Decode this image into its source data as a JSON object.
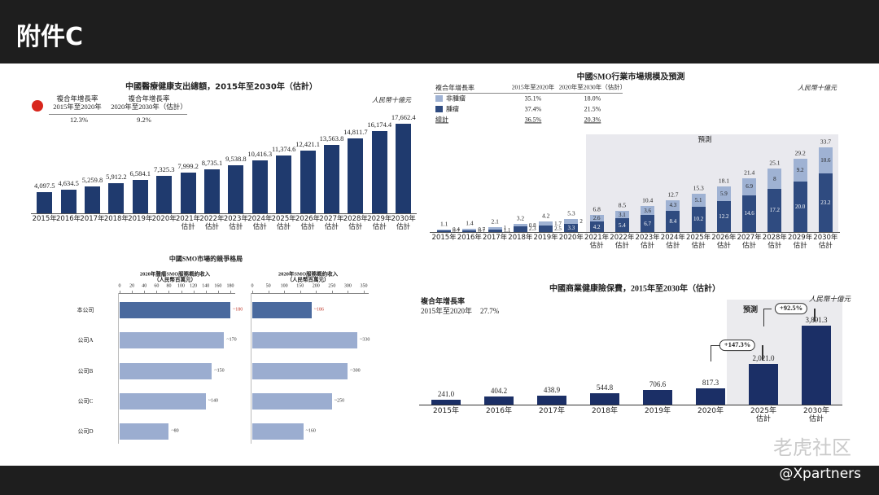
{
  "header": {
    "title": "附件C"
  },
  "footer": {
    "handle": "@Xpartners",
    "watermark": "老虎社区"
  },
  "chart_data": [
    {
      "type": "bar",
      "title": "中國醫療健康支出總額，2015年至2030年（估計）",
      "unit": "人民幣十億元",
      "cagr": {
        "label": "複合年增長率",
        "periods": [
          "2015年至2020年",
          "2020年至2030年（估計）"
        ],
        "values": [
          12.3,
          9.2
        ],
        "value_labels": [
          "12.3%",
          "9.2%"
        ]
      },
      "categories": [
        "2015年",
        "2016年",
        "2017年",
        "2018年",
        "2019年",
        "2020年",
        "2021年\n估計",
        "2022年\n估計",
        "2023年\n估計",
        "2024年\n估計",
        "2025年\n估計",
        "2026年\n估計",
        "2027年\n估計",
        "2028年\n估計",
        "2029年\n估計",
        "2030年\n估計"
      ],
      "values": [
        4097.5,
        4634.5,
        5259.8,
        5912.2,
        6584.1,
        7325.3,
        7999.2,
        8735.1,
        9538.8,
        10416.3,
        11374.6,
        12421.1,
        13563.8,
        14811.7,
        16174.4,
        17662.4
      ],
      "value_labels": [
        "4,097.5",
        "4,634.5",
        "5,259.8",
        "5,912.2",
        "6,584.1",
        "7,325.3",
        "7,999.2",
        "8,735.1",
        "9,538.8",
        "10,416.3",
        "11,374.6",
        "12,421.1",
        "13,563.8",
        "14,811.7",
        "16,174.4",
        "17,662.4"
      ],
      "color": "#1f3a6e"
    },
    {
      "type": "stacked_bar",
      "title": "中國SMO行業市場規模及預測",
      "unit": "人民幣十億元",
      "forecast_label": "預測",
      "cagr": {
        "label": "複合年增長率",
        "periods": [
          "2015年至2020年",
          "2020年至2030年（估計）"
        ],
        "rows": [
          {
            "name": "非腫瘤",
            "values": [
              35.1,
              18.0
            ],
            "value_labels": [
              "35.1%",
              "18.0%"
            ]
          },
          {
            "name": "腫瘤",
            "values": [
              37.4,
              21.5
            ],
            "value_labels": [
              "37.4%",
              "21.5%"
            ]
          },
          {
            "name": "總計",
            "values": [
              36.5,
              20.3
            ],
            "value_labels": [
              "36.5%",
              "20.3%"
            ]
          }
        ]
      },
      "categories": [
        "2015年",
        "2016年",
        "2017年",
        "2018年",
        "2019年",
        "2020年",
        "2021年\n估計",
        "2022年\n估計",
        "2023年\n估計",
        "2024年\n估計",
        "2025年\n估計",
        "2026年\n估計",
        "2027年\n估計",
        "2028年\n估計",
        "2029年\n估計",
        "2030年\n估計"
      ],
      "series": [
        {
          "name": "腫瘤",
          "color": "#2f4b80",
          "values": [
            0.7,
            0.7,
            1.1,
            2.3,
            2.5,
            3.3,
            4.2,
            5.4,
            6.7,
            8.4,
            10.2,
            12.2,
            14.6,
            17.2,
            20.0,
            23.2
          ],
          "value_labels": [
            "0.7",
            "0.7",
            "1.1",
            "2.3",
            "2.5",
            "3.3",
            "4.2",
            "5.4",
            "6.7",
            "8.4",
            "10.2",
            "12.2",
            "14.6",
            "17.2",
            "20.0",
            "23.2"
          ]
        },
        {
          "name": "非腫瘤",
          "color": "#9fb2d3",
          "values": [
            0.4,
            0.7,
            1.0,
            0.8,
            1.7,
            2.0,
            2.6,
            3.1,
            3.6,
            4.3,
            5.1,
            5.9,
            6.9,
            8.0,
            9.2,
            10.6
          ]
        }
      ],
      "totals": [
        1.1,
        1.4,
        2.1,
        3.2,
        4.2,
        5.3,
        6.8,
        8.5,
        10.4,
        12.7,
        15.3,
        18.1,
        21.4,
        25.1,
        29.2,
        33.7
      ]
    },
    {
      "type": "hbar",
      "title": "中國SMO市場的競爭格局",
      "categories": [
        "本公司",
        "公司A",
        "公司B",
        "公司C",
        "公司D"
      ],
      "panels": [
        {
          "title": "2020年腫瘤SMO服務概約收入\n（人民幣百萬元）",
          "xlim": [
            0,
            180
          ],
          "xticks": [
            0,
            20,
            40,
            60,
            80,
            100,
            120,
            140,
            160,
            180
          ],
          "values": [
            180,
            170,
            150,
            140,
            80
          ],
          "value_labels": [
            "~180",
            "~170",
            "~150",
            "~140",
            "~80"
          ]
        },
        {
          "title": "2020年SMO服務概約收入\n（人民幣百萬元）",
          "xlim": [
            0,
            350
          ],
          "xticks": [
            0,
            50,
            100,
            150,
            200,
            250,
            300,
            350
          ],
          "values": [
            186,
            330,
            300,
            250,
            160
          ],
          "value_labels": [
            "~186",
            "~330",
            "~300",
            "~250",
            "~160"
          ]
        }
      ],
      "colors": [
        "#4a6a9e",
        "#9badd0",
        "#9badd0",
        "#9badd0",
        "#9badd0"
      ],
      "label_colors": [
        "#c0392b",
        "#333333",
        "#333333",
        "#333333",
        "#333333"
      ]
    },
    {
      "type": "bar",
      "title": "中國商業健康險保費，2015年至2030年（估計）",
      "unit": "人民幣十億元",
      "cagr": {
        "label": "複合年增長率",
        "periods": [
          "2015年至2020年"
        ],
        "values": [
          27.7
        ],
        "value_labels": [
          "27.7%"
        ]
      },
      "forecast_label": "預測",
      "annotations": [
        "+147.3%",
        "+92.5%"
      ],
      "categories": [
        "2015年",
        "2016年",
        "2017年",
        "2018年",
        "2019年",
        "2020年",
        "2025年\n估計",
        "2030年\n估計"
      ],
      "values": [
        241.0,
        404.2,
        438.9,
        544.8,
        706.6,
        817.3,
        2021.0,
        3891.3
      ],
      "value_labels": [
        "241.0",
        "404.2",
        "438.9",
        "544.8",
        "706.6",
        "817.3",
        "2,021.0",
        "3,891.3"
      ],
      "color": "#1b2f66"
    }
  ]
}
